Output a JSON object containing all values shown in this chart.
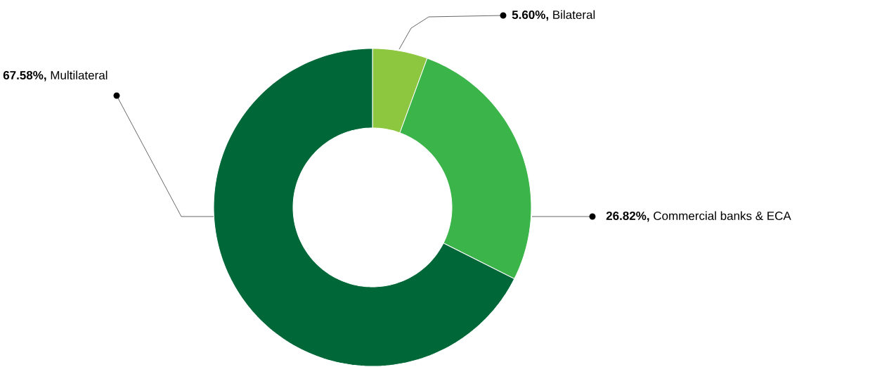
{
  "chart_data": {
    "type": "donut",
    "categories": [
      "Bilateral",
      "Commercial banks & ECA",
      "Multilateral"
    ],
    "values": [
      5.6,
      26.82,
      67.58
    ],
    "value_labels": [
      "5.60%,",
      "26.82%,",
      "67.58%,"
    ],
    "colors": [
      "#8dc63f",
      "#3bb44a",
      "#006838"
    ]
  }
}
